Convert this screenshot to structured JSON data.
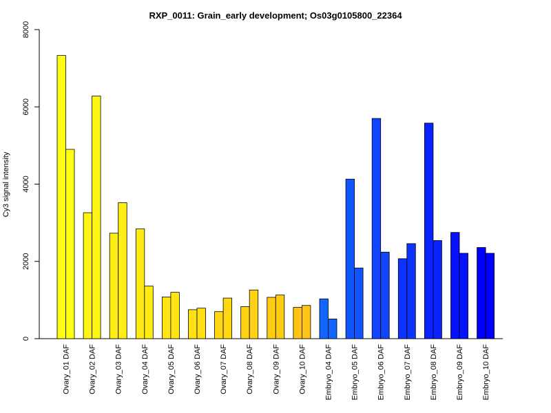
{
  "chart_data": {
    "type": "bar",
    "title": "RXP_0011: Grain_early development; Os03g0105800_22364",
    "ylabel": "Cy3 signal intensity",
    "xlabel": "",
    "ylim": [
      0,
      8000
    ],
    "yticks": [
      0,
      2000,
      4000,
      6000,
      8000
    ],
    "grid": false,
    "categories": [
      "Ovary_01 DAF",
      "Ovary_02 DAF",
      "Ovary_03 DAF",
      "Ovary_04 DAF",
      "Ovary_05 DAF",
      "Ovary_06 DAF",
      "Ovary_07 DAF",
      "Ovary_08 DAF",
      "Ovary_09 DAF",
      "Ovary_10 DAF",
      "Embryo_04 DAF",
      "Embryo_05 DAF",
      "Embryo_06 DAF",
      "Embryo_07 DAF",
      "Embryo_08 DAF",
      "Embryo_09 DAF",
      "Embryo_10 DAF"
    ],
    "series": [
      {
        "values": [
          7330,
          3260,
          2730,
          2840,
          1080,
          750,
          700,
          830,
          1070,
          810,
          1030,
          4130,
          5700,
          2070,
          5580,
          2750,
          2360
        ]
      },
      {
        "values": [
          4900,
          6280,
          3520,
          1360,
          1200,
          790,
          1050,
          1260,
          1130,
          860,
          510,
          1830,
          2240,
          2460,
          2540,
          2210,
          2210
        ]
      }
    ],
    "colors": [
      "#FFFF14",
      "#FFF514",
      "#FFEE14",
      "#FFEB14",
      "#FFE514",
      "#FFE014",
      "#FFD814",
      "#FFD314",
      "#FFCC14",
      "#FFC414",
      "#1166FF",
      "#1155FF",
      "#1144FF",
      "#0E33FF",
      "#0A22FF",
      "#0511FF",
      "#0000FF"
    ]
  }
}
